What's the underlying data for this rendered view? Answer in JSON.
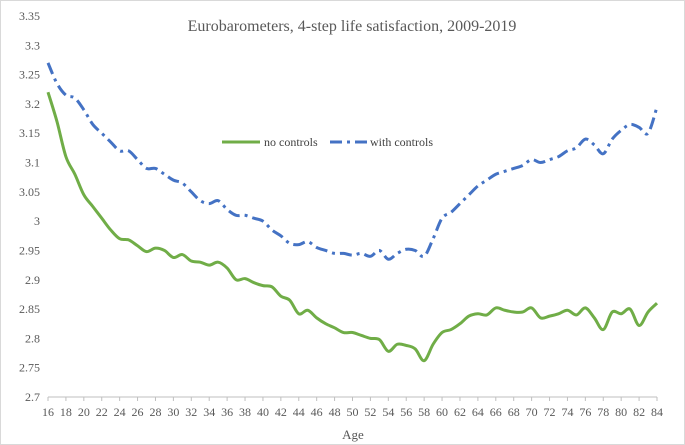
{
  "chart_data": {
    "type": "line",
    "title": "Eurobarometers, 4-step life satisfaction, 2009-2019",
    "xlabel": "Age",
    "ylabel": "",
    "xlim": [
      16,
      84
    ],
    "ylim": [
      2.7,
      3.35
    ],
    "x_ticks": [
      "16",
      "18",
      "20",
      "22",
      "24",
      "26",
      "28",
      "30",
      "32",
      "34",
      "36",
      "38",
      "40",
      "42",
      "44",
      "46",
      "48",
      "50",
      "52",
      "54",
      "56",
      "58",
      "60",
      "62",
      "64",
      "66",
      "68",
      "70",
      "72",
      "74",
      "76",
      "78",
      "80",
      "82",
      "84"
    ],
    "y_ticks": [
      "2.7",
      "2.75",
      "2.8",
      "2.85",
      "2.9",
      "2.95",
      "3",
      "3.05",
      "3.1",
      "3.15",
      "3.2",
      "3.25",
      "3.3",
      "3.35"
    ],
    "legend_position": "center",
    "grid": false,
    "x": [
      16,
      17,
      18,
      19,
      20,
      21,
      22,
      23,
      24,
      25,
      26,
      27,
      28,
      29,
      30,
      31,
      32,
      33,
      34,
      35,
      36,
      37,
      38,
      39,
      40,
      41,
      42,
      43,
      44,
      45,
      46,
      47,
      48,
      49,
      50,
      51,
      52,
      53,
      54,
      55,
      56,
      57,
      58,
      59,
      60,
      61,
      62,
      63,
      64,
      65,
      66,
      67,
      68,
      69,
      70,
      71,
      72,
      73,
      74,
      75,
      76,
      77,
      78,
      79,
      80,
      81,
      82,
      83,
      84
    ],
    "series": [
      {
        "name": "no controls",
        "color": "#70ad47",
        "style": "solid",
        "values": [
          3.22,
          3.17,
          3.11,
          3.08,
          3.045,
          3.025,
          3.005,
          2.985,
          2.97,
          2.968,
          2.958,
          2.948,
          2.954,
          2.95,
          2.938,
          2.943,
          2.932,
          2.93,
          2.925,
          2.93,
          2.92,
          2.9,
          2.902,
          2.895,
          2.89,
          2.888,
          2.872,
          2.865,
          2.842,
          2.848,
          2.835,
          2.825,
          2.818,
          2.81,
          2.81,
          2.805,
          2.8,
          2.798,
          2.778,
          2.79,
          2.788,
          2.782,
          2.762,
          2.79,
          2.81,
          2.815,
          2.825,
          2.838,
          2.842,
          2.84,
          2.852,
          2.848,
          2.845,
          2.845,
          2.852,
          2.835,
          2.838,
          2.842,
          2.848,
          2.84,
          2.852,
          2.835,
          2.815,
          2.845,
          2.842,
          2.85,
          2.822,
          2.845,
          2.86
        ]
      },
      {
        "name": "with controls",
        "color": "#4472c4",
        "style": "dash-dot",
        "values": [
          3.27,
          3.235,
          3.215,
          3.21,
          3.19,
          3.165,
          3.15,
          3.135,
          3.12,
          3.12,
          3.105,
          3.09,
          3.09,
          3.08,
          3.07,
          3.065,
          3.05,
          3.035,
          3.03,
          3.035,
          3.02,
          3.01,
          3.01,
          3.005,
          3.0,
          2.985,
          2.975,
          2.962,
          2.96,
          2.965,
          2.955,
          2.95,
          2.945,
          2.945,
          2.942,
          2.945,
          2.94,
          2.95,
          2.935,
          2.945,
          2.952,
          2.95,
          2.94,
          2.97,
          3.005,
          3.015,
          3.03,
          3.045,
          3.06,
          3.07,
          3.08,
          3.085,
          3.09,
          3.095,
          3.105,
          3.1,
          3.105,
          3.11,
          3.12,
          3.125,
          3.14,
          3.13,
          3.115,
          3.14,
          3.155,
          3.165,
          3.16,
          3.15,
          3.195
        ]
      }
    ]
  }
}
